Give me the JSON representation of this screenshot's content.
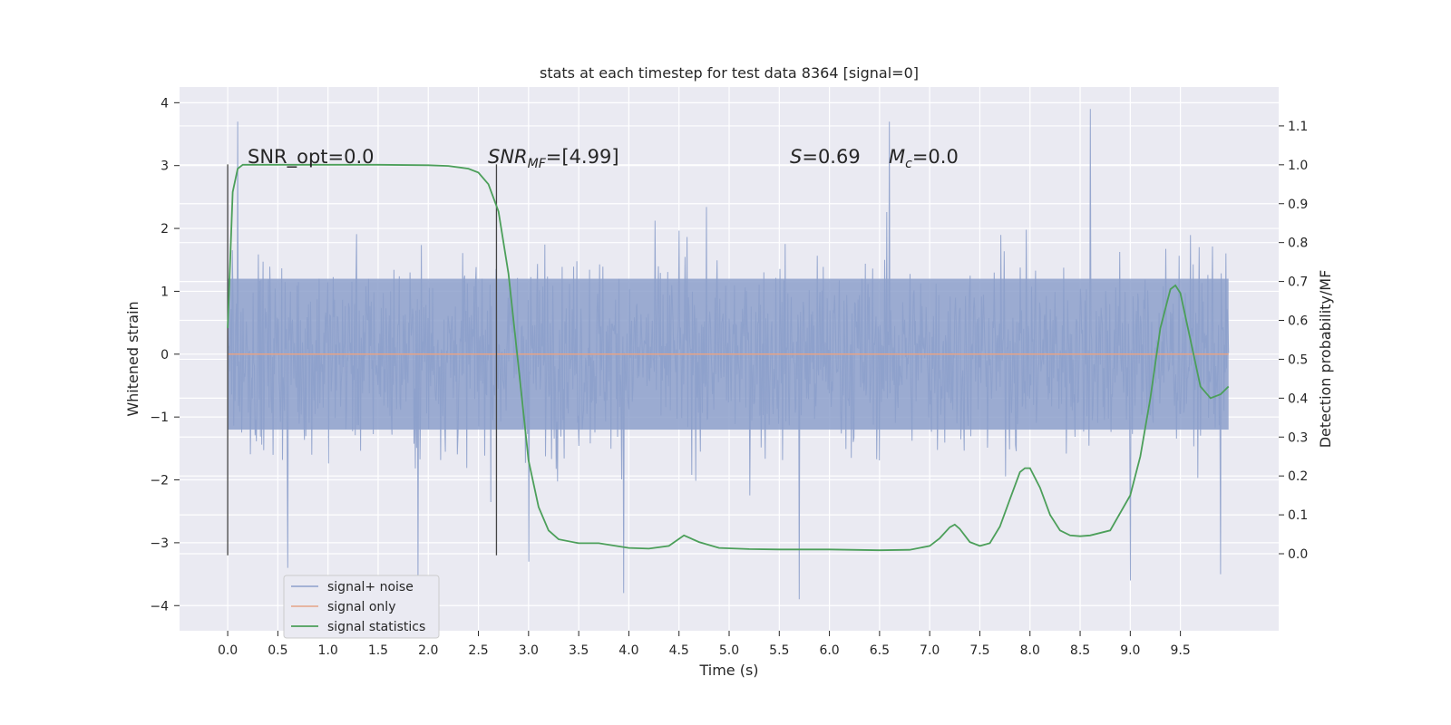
{
  "chart_data": {
    "type": "line",
    "title": "stats at each timestep for test data 8364 [signal=0]",
    "xlabel": "Time (s)",
    "ylabel": "Whitened strain",
    "ylabel_right": "Detection probability/MF",
    "xlim": [
      -0.48,
      10.48
    ],
    "ylim": [
      -4.4,
      4.25
    ],
    "ylim_right": [
      -0.198,
      1.2
    ],
    "x_ticks": [
      "0.0",
      "0.5",
      "1.0",
      "1.5",
      "2.0",
      "2.5",
      "3.0",
      "3.5",
      "4.0",
      "4.5",
      "5.0",
      "5.5",
      "6.0",
      "6.5",
      "7.0",
      "7.5",
      "8.0",
      "8.5",
      "9.0",
      "9.5"
    ],
    "y_ticks": [
      "4",
      "3",
      "2",
      "1",
      "0",
      "−1",
      "−2",
      "−3",
      "−4"
    ],
    "y_ticks_right": [
      "1.1",
      "1.0",
      "0.9",
      "0.8",
      "0.7",
      "0.6",
      "0.5",
      "0.4",
      "0.3",
      "0.2",
      "0.1",
      "0.0"
    ],
    "grid": true,
    "legend_position": "lower-left",
    "annotations": {
      "snr_opt": "SNR_opt=0.0",
      "snr_mf_base": "SNR",
      "snr_mf_sub": "MF",
      "snr_mf_rest": "=[4.99]",
      "s_italic": "S",
      "s_rest": "=0.69",
      "mc_base": "M",
      "mc_sub": "c",
      "mc_rest": "=0.0"
    },
    "vertical_markers": [
      0.0,
      2.68
    ],
    "series": [
      {
        "name": "signal+ noise",
        "color": "#8da0cb",
        "axis": "left",
        "x_range": [
          0.0,
          9.98
        ],
        "y_envelope": [
          -3.9,
          3.9
        ],
        "notable_peaks": [
          [
            0.1,
            3.7
          ],
          [
            0.6,
            -3.4
          ],
          [
            1.9,
            -3.7
          ],
          [
            3.0,
            -3.3
          ],
          [
            3.95,
            -3.8
          ],
          [
            5.7,
            -4.0
          ],
          [
            6.6,
            3.7
          ],
          [
            8.6,
            3.9
          ],
          [
            9.0,
            -3.6
          ],
          [
            9.9,
            -3.5
          ]
        ]
      },
      {
        "name": "signal only",
        "color": "#e5a387",
        "axis": "left",
        "x": [
          0.0,
          9.98
        ],
        "y": [
          0.0,
          0.0
        ]
      },
      {
        "name": "signal statistics",
        "color": "#4c9f5a",
        "axis": "right",
        "x": [
          0.0,
          0.05,
          0.1,
          0.15,
          0.2,
          0.3,
          0.5,
          1.0,
          1.5,
          2.0,
          2.2,
          2.4,
          2.5,
          2.6,
          2.7,
          2.8,
          2.9,
          3.0,
          3.1,
          3.2,
          3.3,
          3.5,
          3.7,
          4.0,
          4.2,
          4.4,
          4.55,
          4.7,
          4.9,
          5.2,
          5.5,
          6.0,
          6.5,
          6.8,
          7.0,
          7.1,
          7.2,
          7.25,
          7.3,
          7.4,
          7.5,
          7.6,
          7.7,
          7.8,
          7.9,
          7.95,
          8.0,
          8.1,
          8.2,
          8.3,
          8.4,
          8.5,
          8.6,
          8.8,
          9.0,
          9.1,
          9.2,
          9.3,
          9.4,
          9.45,
          9.5,
          9.6,
          9.7,
          9.8,
          9.9,
          9.98
        ],
        "y": [
          0.58,
          0.93,
          0.99,
          1.0,
          1.0,
          1.0,
          1.0,
          1.0,
          1.0,
          0.999,
          0.997,
          0.99,
          0.98,
          0.95,
          0.88,
          0.72,
          0.48,
          0.24,
          0.12,
          0.06,
          0.037,
          0.027,
          0.027,
          0.015,
          0.013,
          0.02,
          0.047,
          0.03,
          0.015,
          0.012,
          0.011,
          0.011,
          0.009,
          0.01,
          0.02,
          0.04,
          0.068,
          0.075,
          0.064,
          0.03,
          0.02,
          0.027,
          0.07,
          0.14,
          0.21,
          0.22,
          0.22,
          0.17,
          0.1,
          0.06,
          0.047,
          0.045,
          0.047,
          0.06,
          0.15,
          0.25,
          0.4,
          0.58,
          0.68,
          0.69,
          0.67,
          0.55,
          0.43,
          0.4,
          0.41,
          0.43
        ]
      }
    ]
  }
}
